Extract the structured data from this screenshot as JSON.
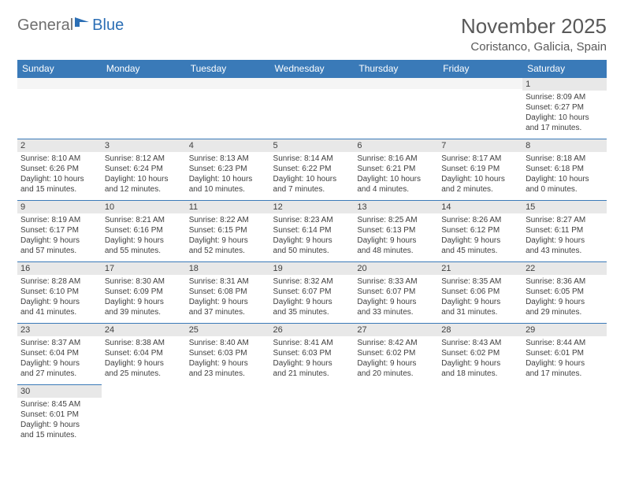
{
  "logo": {
    "part1": "General",
    "part2": "Blue"
  },
  "title": "November 2025",
  "location": "Coristanco, Galicia, Spain",
  "colors": {
    "header_bg": "#3a7ab8",
    "header_text": "#ffffff",
    "daynum_bg": "#e8e8e8",
    "text": "#404040",
    "logo_gray": "#6f6f6f",
    "logo_blue": "#2c6fb5",
    "title_gray": "#595959"
  },
  "weekdays": [
    "Sunday",
    "Monday",
    "Tuesday",
    "Wednesday",
    "Thursday",
    "Friday",
    "Saturday"
  ],
  "weeks": [
    [
      {
        "e": true
      },
      {
        "e": true
      },
      {
        "e": true
      },
      {
        "e": true
      },
      {
        "e": true
      },
      {
        "e": true
      },
      {
        "n": "1",
        "sr": "Sunrise: 8:09 AM",
        "ss": "Sunset: 6:27 PM",
        "d1": "Daylight: 10 hours",
        "d2": "and 17 minutes."
      }
    ],
    [
      {
        "n": "2",
        "sr": "Sunrise: 8:10 AM",
        "ss": "Sunset: 6:26 PM",
        "d1": "Daylight: 10 hours",
        "d2": "and 15 minutes."
      },
      {
        "n": "3",
        "sr": "Sunrise: 8:12 AM",
        "ss": "Sunset: 6:24 PM",
        "d1": "Daylight: 10 hours",
        "d2": "and 12 minutes."
      },
      {
        "n": "4",
        "sr": "Sunrise: 8:13 AM",
        "ss": "Sunset: 6:23 PM",
        "d1": "Daylight: 10 hours",
        "d2": "and 10 minutes."
      },
      {
        "n": "5",
        "sr": "Sunrise: 8:14 AM",
        "ss": "Sunset: 6:22 PM",
        "d1": "Daylight: 10 hours",
        "d2": "and 7 minutes."
      },
      {
        "n": "6",
        "sr": "Sunrise: 8:16 AM",
        "ss": "Sunset: 6:21 PM",
        "d1": "Daylight: 10 hours",
        "d2": "and 4 minutes."
      },
      {
        "n": "7",
        "sr": "Sunrise: 8:17 AM",
        "ss": "Sunset: 6:19 PM",
        "d1": "Daylight: 10 hours",
        "d2": "and 2 minutes."
      },
      {
        "n": "8",
        "sr": "Sunrise: 8:18 AM",
        "ss": "Sunset: 6:18 PM",
        "d1": "Daylight: 10 hours",
        "d2": "and 0 minutes."
      }
    ],
    [
      {
        "n": "9",
        "sr": "Sunrise: 8:19 AM",
        "ss": "Sunset: 6:17 PM",
        "d1": "Daylight: 9 hours",
        "d2": "and 57 minutes."
      },
      {
        "n": "10",
        "sr": "Sunrise: 8:21 AM",
        "ss": "Sunset: 6:16 PM",
        "d1": "Daylight: 9 hours",
        "d2": "and 55 minutes."
      },
      {
        "n": "11",
        "sr": "Sunrise: 8:22 AM",
        "ss": "Sunset: 6:15 PM",
        "d1": "Daylight: 9 hours",
        "d2": "and 52 minutes."
      },
      {
        "n": "12",
        "sr": "Sunrise: 8:23 AM",
        "ss": "Sunset: 6:14 PM",
        "d1": "Daylight: 9 hours",
        "d2": "and 50 minutes."
      },
      {
        "n": "13",
        "sr": "Sunrise: 8:25 AM",
        "ss": "Sunset: 6:13 PM",
        "d1": "Daylight: 9 hours",
        "d2": "and 48 minutes."
      },
      {
        "n": "14",
        "sr": "Sunrise: 8:26 AM",
        "ss": "Sunset: 6:12 PM",
        "d1": "Daylight: 9 hours",
        "d2": "and 45 minutes."
      },
      {
        "n": "15",
        "sr": "Sunrise: 8:27 AM",
        "ss": "Sunset: 6:11 PM",
        "d1": "Daylight: 9 hours",
        "d2": "and 43 minutes."
      }
    ],
    [
      {
        "n": "16",
        "sr": "Sunrise: 8:28 AM",
        "ss": "Sunset: 6:10 PM",
        "d1": "Daylight: 9 hours",
        "d2": "and 41 minutes."
      },
      {
        "n": "17",
        "sr": "Sunrise: 8:30 AM",
        "ss": "Sunset: 6:09 PM",
        "d1": "Daylight: 9 hours",
        "d2": "and 39 minutes."
      },
      {
        "n": "18",
        "sr": "Sunrise: 8:31 AM",
        "ss": "Sunset: 6:08 PM",
        "d1": "Daylight: 9 hours",
        "d2": "and 37 minutes."
      },
      {
        "n": "19",
        "sr": "Sunrise: 8:32 AM",
        "ss": "Sunset: 6:07 PM",
        "d1": "Daylight: 9 hours",
        "d2": "and 35 minutes."
      },
      {
        "n": "20",
        "sr": "Sunrise: 8:33 AM",
        "ss": "Sunset: 6:07 PM",
        "d1": "Daylight: 9 hours",
        "d2": "and 33 minutes."
      },
      {
        "n": "21",
        "sr": "Sunrise: 8:35 AM",
        "ss": "Sunset: 6:06 PM",
        "d1": "Daylight: 9 hours",
        "d2": "and 31 minutes."
      },
      {
        "n": "22",
        "sr": "Sunrise: 8:36 AM",
        "ss": "Sunset: 6:05 PM",
        "d1": "Daylight: 9 hours",
        "d2": "and 29 minutes."
      }
    ],
    [
      {
        "n": "23",
        "sr": "Sunrise: 8:37 AM",
        "ss": "Sunset: 6:04 PM",
        "d1": "Daylight: 9 hours",
        "d2": "and 27 minutes."
      },
      {
        "n": "24",
        "sr": "Sunrise: 8:38 AM",
        "ss": "Sunset: 6:04 PM",
        "d1": "Daylight: 9 hours",
        "d2": "and 25 minutes."
      },
      {
        "n": "25",
        "sr": "Sunrise: 8:40 AM",
        "ss": "Sunset: 6:03 PM",
        "d1": "Daylight: 9 hours",
        "d2": "and 23 minutes."
      },
      {
        "n": "26",
        "sr": "Sunrise: 8:41 AM",
        "ss": "Sunset: 6:03 PM",
        "d1": "Daylight: 9 hours",
        "d2": "and 21 minutes."
      },
      {
        "n": "27",
        "sr": "Sunrise: 8:42 AM",
        "ss": "Sunset: 6:02 PM",
        "d1": "Daylight: 9 hours",
        "d2": "and 20 minutes."
      },
      {
        "n": "28",
        "sr": "Sunrise: 8:43 AM",
        "ss": "Sunset: 6:02 PM",
        "d1": "Daylight: 9 hours",
        "d2": "and 18 minutes."
      },
      {
        "n": "29",
        "sr": "Sunrise: 8:44 AM",
        "ss": "Sunset: 6:01 PM",
        "d1": "Daylight: 9 hours",
        "d2": "and 17 minutes."
      }
    ],
    [
      {
        "n": "30",
        "sr": "Sunrise: 8:45 AM",
        "ss": "Sunset: 6:01 PM",
        "d1": "Daylight: 9 hours",
        "d2": "and 15 minutes."
      },
      {
        "e": true
      },
      {
        "e": true
      },
      {
        "e": true
      },
      {
        "e": true
      },
      {
        "e": true
      },
      {
        "e": true
      }
    ]
  ]
}
